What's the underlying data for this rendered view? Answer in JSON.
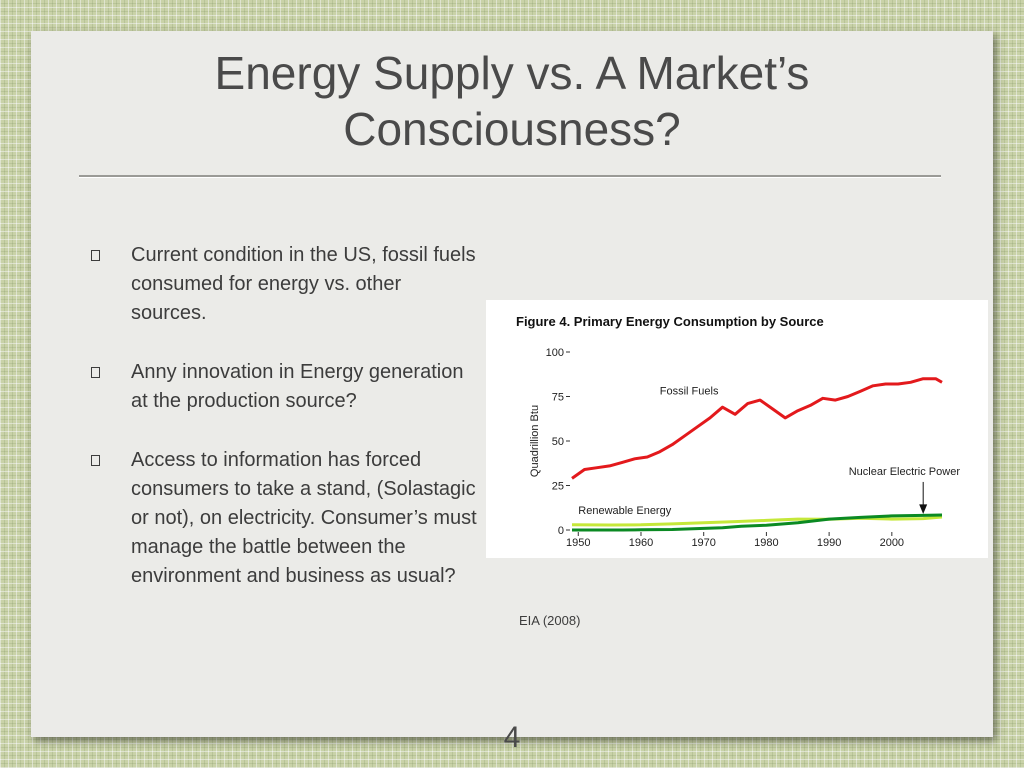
{
  "slide": {
    "title_line1": "Energy Supply vs. A Market’s",
    "title_line2": "Consciousness?",
    "bullets": [
      "Current condition in the US, fossil fuels consumed for energy vs. other sources.",
      "Anny innovation in Energy generation at the production source?",
      "Access to information has forced consumers to take a stand, (Solastagic or not), on electricity.  Consumer’s must manage the battle between the environment and business as usual?"
    ],
    "citation": "EIA (2008)",
    "page_number": "4"
  },
  "chart_data": {
    "type": "line",
    "title": "Figure 4.  Primary Energy Consumption by Source",
    "ylabel": "Quadrillion Btu",
    "xlabel": "",
    "xlim": [
      1949,
      2008
    ],
    "ylim": [
      0,
      100
    ],
    "x_ticks": [
      1950,
      1960,
      1970,
      1980,
      1990,
      2000
    ],
    "y_ticks": [
      0,
      25,
      50,
      75,
      100
    ],
    "grid": false,
    "series": [
      {
        "name": "Fossil Fuels",
        "color": "#e3191c",
        "x": [
          1949,
          1951,
          1953,
          1955,
          1957,
          1959,
          1961,
          1963,
          1965,
          1967,
          1969,
          1971,
          1973,
          1975,
          1977,
          1979,
          1981,
          1983,
          1985,
          1987,
          1989,
          1991,
          1993,
          1995,
          1997,
          1999,
          2001,
          2003,
          2005,
          2007,
          2008
        ],
        "values": [
          29,
          34,
          35,
          36,
          38,
          40,
          41,
          44,
          48,
          53,
          58,
          63,
          69,
          65,
          71,
          73,
          68,
          63,
          67,
          70,
          74,
          73,
          75,
          78,
          81,
          82,
          82,
          83,
          85,
          85,
          83
        ]
      },
      {
        "name": "Nuclear Electric Power",
        "color": "#0b8a23",
        "x": [
          1949,
          1957,
          1960,
          1965,
          1970,
          1973,
          1976,
          1980,
          1985,
          1990,
          1995,
          2000,
          2005,
          2008
        ],
        "values": [
          0,
          0,
          0.1,
          0.3,
          0.9,
          1.3,
          2.1,
          2.7,
          4.1,
          6.1,
          7.1,
          7.9,
          8.2,
          8.4
        ]
      },
      {
        "name": "Renewable Energy",
        "color": "#c5e83a",
        "x": [
          1949,
          1955,
          1960,
          1965,
          1970,
          1975,
          1980,
          1985,
          1990,
          1995,
          2000,
          2005,
          2008
        ],
        "values": [
          2.9,
          2.8,
          2.9,
          3.4,
          4.1,
          4.7,
          5.4,
          6.1,
          6.0,
          6.6,
          6.1,
          6.4,
          7.3
        ]
      }
    ],
    "annotations": [
      {
        "text": "Fossil Fuels"
      },
      {
        "text": "Nuclear Electric Power"
      },
      {
        "text": "Renewable Energy"
      }
    ]
  }
}
